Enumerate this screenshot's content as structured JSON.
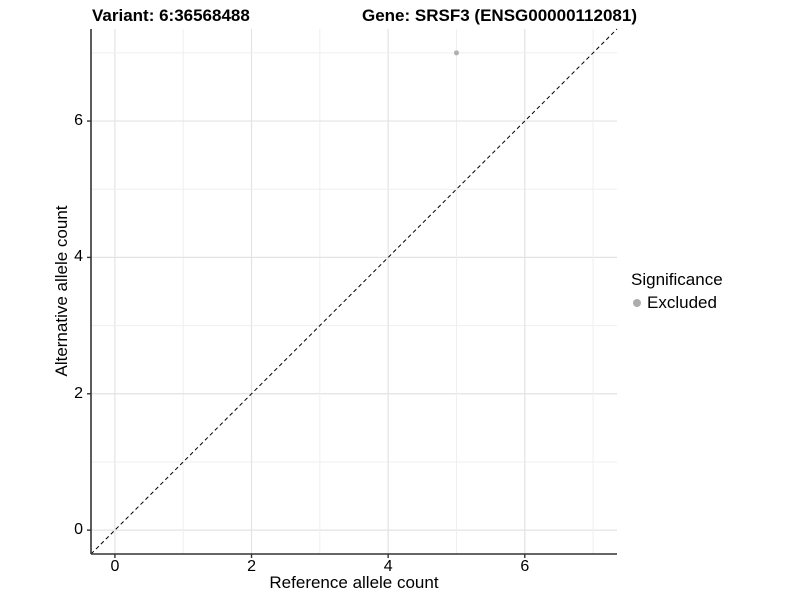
{
  "chart_data": {
    "type": "scatter",
    "titles": {
      "left": "Variant: 6:36568488",
      "right": "Gene: SRSF3 (ENSG00000112081)"
    },
    "xlabel": "Reference allele count",
    "ylabel": "Alternative allele count",
    "xlim": [
      -0.35,
      7.35
    ],
    "ylim": [
      -0.35,
      7.35
    ],
    "x_ticks": [
      0,
      2,
      4,
      6
    ],
    "y_ticks": [
      0,
      2,
      4,
      6
    ],
    "grid_values": [
      0,
      1,
      2,
      3,
      4,
      5,
      6,
      7
    ],
    "grid": true,
    "legend_position": "right",
    "legend": {
      "title": "Significance",
      "entries": [
        {
          "label": "Excluded",
          "color": "#adadad"
        }
      ]
    },
    "series": [
      {
        "name": "Excluded",
        "color": "#b0b0b0",
        "point_radius": 2.5,
        "points": [
          [
            5,
            7
          ]
        ]
      }
    ],
    "abline": {
      "intercept": 0,
      "slope": 1,
      "style": "dashed",
      "color": "#000000"
    }
  },
  "colors": {
    "background": "#ffffff",
    "grid_major": "#e3e3e3",
    "grid_minor": "#efefef",
    "axis_line": "#333333",
    "tick_mark": "#333333",
    "text": "#000000"
  }
}
